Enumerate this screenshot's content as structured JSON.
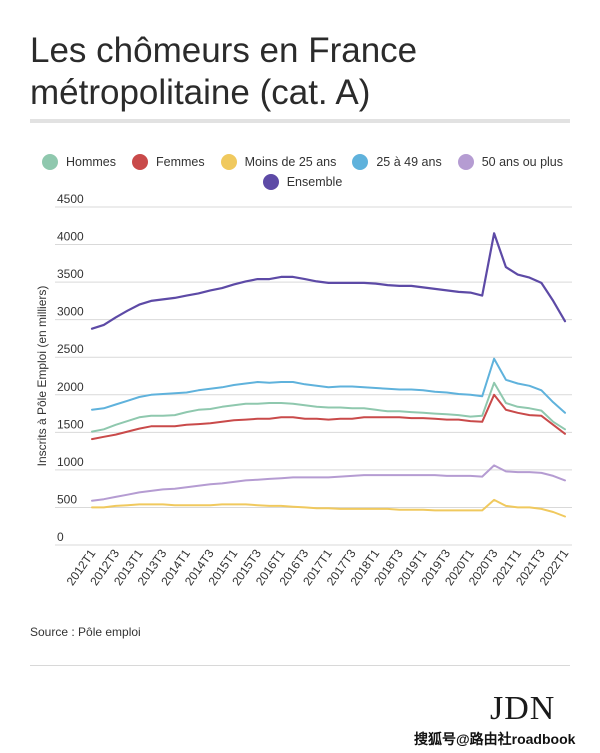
{
  "title": "Les chômeurs en France métropolitaine (cat. A)",
  "source": "Source : Pôle emploi",
  "logo": "JDN",
  "watermark": "搜狐号@路由社roadbook",
  "chart_data": {
    "type": "line",
    "title": "Les chômeurs en France métropolitaine (cat. A)",
    "ylabel": "Inscrits à Pôle Emploi (en milliers)",
    "xlabel": "",
    "ylim": [
      0,
      4500
    ],
    "yticks": [
      0,
      500,
      1000,
      1500,
      2000,
      2500,
      3000,
      3500,
      4000,
      4500
    ],
    "grid": true,
    "legend_position": "top",
    "x_tick_labels": [
      "2012T1",
      "2012T3",
      "2013T1",
      "2013T3",
      "2014T1",
      "2014T3",
      "2015T1",
      "2015T3",
      "2016T1",
      "2016T3",
      "2017T1",
      "2017T3",
      "2018T1",
      "2018T3",
      "2019T1",
      "2019T3",
      "2020T1",
      "2020T3",
      "2021T1",
      "2021T3",
      "2022T1"
    ],
    "x": [
      "2012T1",
      "2012T2",
      "2012T3",
      "2012T4",
      "2013T1",
      "2013T2",
      "2013T3",
      "2013T4",
      "2014T1",
      "2014T2",
      "2014T3",
      "2014T4",
      "2015T1",
      "2015T2",
      "2015T3",
      "2015T4",
      "2016T1",
      "2016T2",
      "2016T3",
      "2016T4",
      "2017T1",
      "2017T2",
      "2017T3",
      "2017T4",
      "2018T1",
      "2018T2",
      "2018T3",
      "2018T4",
      "2019T1",
      "2019T2",
      "2019T3",
      "2019T4",
      "2020T1",
      "2020T2",
      "2020T3",
      "2020T4",
      "2021T1",
      "2021T2",
      "2021T3",
      "2021T4",
      "2022T1"
    ],
    "series": [
      {
        "name": "Hommes",
        "color": "#8fc8ae",
        "values": [
          1510,
          1540,
          1600,
          1650,
          1700,
          1720,
          1720,
          1730,
          1770,
          1800,
          1810,
          1840,
          1860,
          1880,
          1880,
          1890,
          1890,
          1880,
          1860,
          1840,
          1830,
          1830,
          1820,
          1820,
          1800,
          1780,
          1780,
          1770,
          1760,
          1750,
          1740,
          1730,
          1710,
          1720,
          2160,
          1890,
          1840,
          1820,
          1790,
          1640,
          1540
        ]
      },
      {
        "name": "Femmes",
        "color": "#c94a4a",
        "values": [
          1410,
          1440,
          1470,
          1510,
          1550,
          1580,
          1580,
          1580,
          1600,
          1610,
          1620,
          1640,
          1660,
          1670,
          1680,
          1680,
          1700,
          1700,
          1680,
          1680,
          1670,
          1680,
          1680,
          1700,
          1700,
          1700,
          1700,
          1690,
          1690,
          1680,
          1670,
          1670,
          1650,
          1640,
          2000,
          1800,
          1760,
          1730,
          1720,
          1600,
          1480
        ]
      },
      {
        "name": "Moins de 25 ans",
        "color": "#f0c95e",
        "values": [
          500,
          500,
          520,
          530,
          540,
          540,
          540,
          530,
          530,
          530,
          530,
          540,
          540,
          540,
          530,
          520,
          520,
          510,
          500,
          490,
          490,
          480,
          480,
          480,
          480,
          480,
          470,
          470,
          470,
          460,
          460,
          460,
          460,
          460,
          600,
          520,
          500,
          500,
          480,
          440,
          380
        ]
      },
      {
        "name": "25 à 49 ans",
        "color": "#5fb2dc",
        "values": [
          1800,
          1820,
          1870,
          1920,
          1970,
          2000,
          2010,
          2020,
          2030,
          2060,
          2080,
          2100,
          2130,
          2150,
          2170,
          2160,
          2170,
          2170,
          2140,
          2120,
          2100,
          2110,
          2110,
          2100,
          2090,
          2080,
          2070,
          2070,
          2060,
          2040,
          2030,
          2010,
          2000,
          1980,
          2480,
          2200,
          2150,
          2120,
          2060,
          1900,
          1760
        ]
      },
      {
        "name": "50 ans ou plus",
        "color": "#b59cd2",
        "values": [
          590,
          610,
          640,
          670,
          700,
          720,
          740,
          750,
          770,
          790,
          810,
          820,
          840,
          860,
          870,
          880,
          890,
          900,
          900,
          900,
          900,
          910,
          920,
          930,
          930,
          930,
          930,
          930,
          930,
          930,
          920,
          920,
          920,
          910,
          1060,
          980,
          970,
          970,
          960,
          920,
          860
        ]
      },
      {
        "name": "Ensemble",
        "color": "#5d4aa6",
        "values": [
          2880,
          2930,
          3030,
          3120,
          3200,
          3250,
          3270,
          3290,
          3320,
          3350,
          3390,
          3420,
          3470,
          3510,
          3540,
          3540,
          3570,
          3570,
          3540,
          3510,
          3490,
          3490,
          3490,
          3490,
          3480,
          3460,
          3450,
          3450,
          3430,
          3410,
          3390,
          3370,
          3360,
          3320,
          4150,
          3700,
          3600,
          3560,
          3490,
          3250,
          2980
        ]
      }
    ]
  }
}
